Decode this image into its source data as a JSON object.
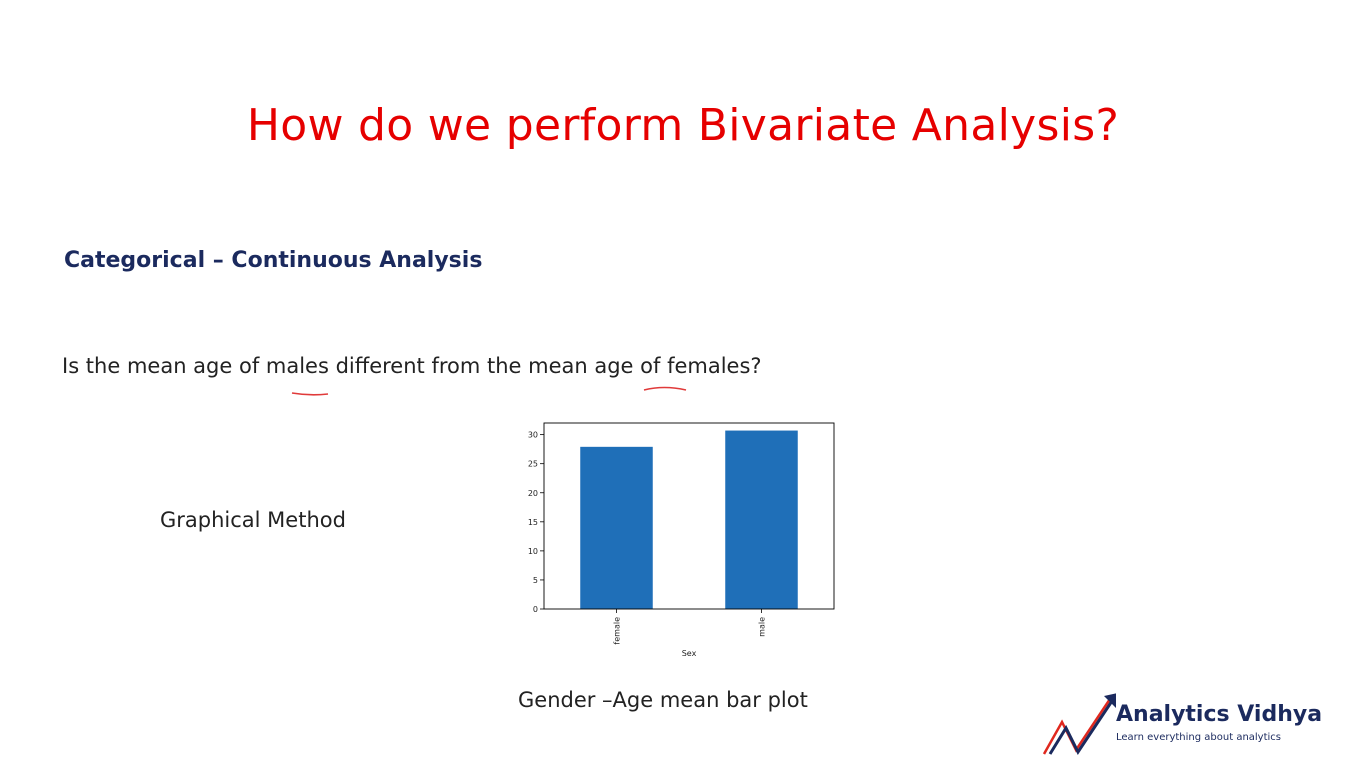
{
  "slide": {
    "title": "How do we perform Bivariate Analysis?",
    "subtitle": "Categorical – Continuous Analysis",
    "question": "Is the mean age of males different from the mean age of females?",
    "method_label": "Graphical Method",
    "caption": "Gender –Age mean bar plot",
    "title_color": "#e60000",
    "subtitle_color": "#1b2a5e"
  },
  "chart_data": {
    "type": "bar",
    "categories": [
      "female",
      "male"
    ],
    "values": [
      27.9,
      30.7
    ],
    "xlabel": "Sex",
    "ylabel": "",
    "ylim": [
      0,
      32
    ],
    "yticks": [
      0,
      5,
      10,
      15,
      20,
      25,
      30
    ],
    "bar_color": "#1f6fb8",
    "grid": false
  },
  "logo": {
    "name": "Analytics Vidhya",
    "tagline": "Learn everything about analytics",
    "brand_color": "#1b2a5e",
    "accent_color": "#e0281e"
  }
}
